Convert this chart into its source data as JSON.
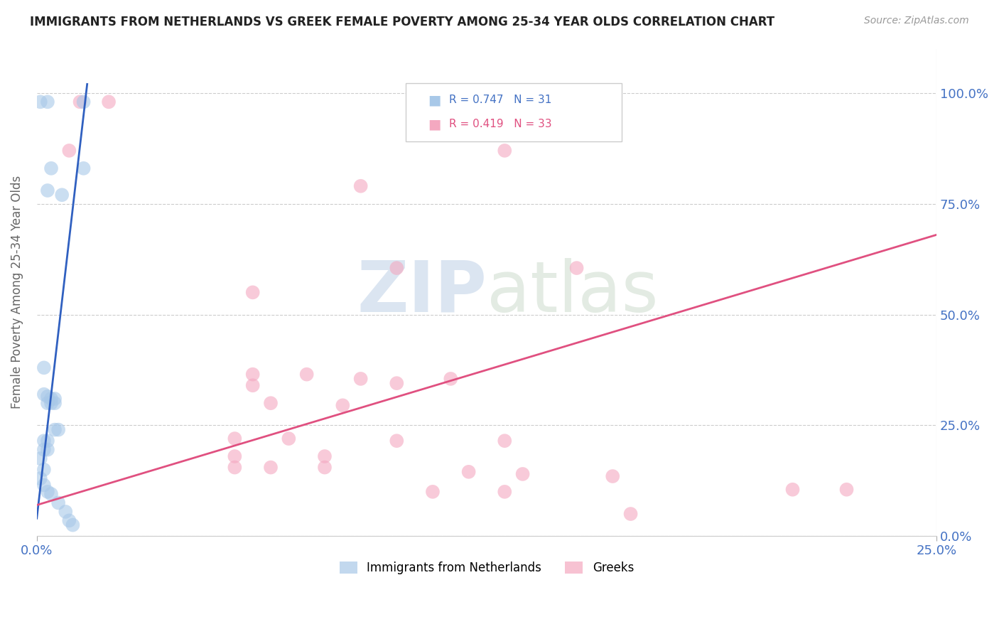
{
  "title": "IMMIGRANTS FROM NETHERLANDS VS GREEK FEMALE POVERTY AMONG 25-34 YEAR OLDS CORRELATION CHART",
  "source": "Source: ZipAtlas.com",
  "ylabel": "Female Poverty Among 25-34 Year Olds",
  "legend1_label": "Immigrants from Netherlands",
  "legend2_label": "Greeks",
  "r1": 0.747,
  "n1": 31,
  "r2": 0.419,
  "n2": 33,
  "blue_color": "#a8c8e8",
  "pink_color": "#f4a8c0",
  "blue_line_color": "#3060c0",
  "pink_line_color": "#e05080",
  "blue_dots": [
    [
      0.001,
      0.98
    ],
    [
      0.003,
      0.98
    ],
    [
      0.013,
      0.98
    ],
    [
      0.004,
      0.83
    ],
    [
      0.013,
      0.83
    ],
    [
      0.003,
      0.78
    ],
    [
      0.007,
      0.77
    ],
    [
      0.002,
      0.38
    ],
    [
      0.002,
      0.32
    ],
    [
      0.003,
      0.315
    ],
    [
      0.004,
      0.31
    ],
    [
      0.005,
      0.31
    ],
    [
      0.003,
      0.3
    ],
    [
      0.004,
      0.3
    ],
    [
      0.005,
      0.3
    ],
    [
      0.005,
      0.24
    ],
    [
      0.006,
      0.24
    ],
    [
      0.002,
      0.215
    ],
    [
      0.003,
      0.215
    ],
    [
      0.002,
      0.195
    ],
    [
      0.003,
      0.195
    ],
    [
      0.001,
      0.175
    ],
    [
      0.002,
      0.15
    ],
    [
      0.001,
      0.13
    ],
    [
      0.002,
      0.115
    ],
    [
      0.003,
      0.1
    ],
    [
      0.004,
      0.095
    ],
    [
      0.006,
      0.075
    ],
    [
      0.008,
      0.055
    ],
    [
      0.009,
      0.035
    ],
    [
      0.01,
      0.025
    ]
  ],
  "pink_dots": [
    [
      0.012,
      0.98
    ],
    [
      0.02,
      0.98
    ],
    [
      0.009,
      0.87
    ],
    [
      0.13,
      0.87
    ],
    [
      0.09,
      0.79
    ],
    [
      0.1,
      0.605
    ],
    [
      0.15,
      0.605
    ],
    [
      0.06,
      0.55
    ],
    [
      0.06,
      0.365
    ],
    [
      0.075,
      0.365
    ],
    [
      0.09,
      0.355
    ],
    [
      0.115,
      0.355
    ],
    [
      0.06,
      0.34
    ],
    [
      0.1,
      0.345
    ],
    [
      0.065,
      0.3
    ],
    [
      0.085,
      0.295
    ],
    [
      0.055,
      0.22
    ],
    [
      0.07,
      0.22
    ],
    [
      0.1,
      0.215
    ],
    [
      0.13,
      0.215
    ],
    [
      0.055,
      0.18
    ],
    [
      0.08,
      0.18
    ],
    [
      0.055,
      0.155
    ],
    [
      0.065,
      0.155
    ],
    [
      0.08,
      0.155
    ],
    [
      0.12,
      0.145
    ],
    [
      0.135,
      0.14
    ],
    [
      0.16,
      0.135
    ],
    [
      0.11,
      0.1
    ],
    [
      0.13,
      0.1
    ],
    [
      0.21,
      0.105
    ],
    [
      0.225,
      0.105
    ],
    [
      0.165,
      0.05
    ]
  ],
  "blue_line_x": [
    0.0,
    0.014
  ],
  "blue_line_y": [
    0.04,
    1.02
  ],
  "pink_line_x": [
    0.0,
    0.25
  ],
  "pink_line_y": [
    0.07,
    0.68
  ],
  "xlim": [
    0.0,
    0.25
  ],
  "ylim": [
    0.0,
    1.1
  ],
  "ytick_vals": [
    0.0,
    0.25,
    0.5,
    0.75,
    1.0
  ],
  "xtick_vals": [
    0.0,
    0.25
  ],
  "watermark_zip": "ZIP",
  "watermark_atlas": "atlas",
  "dot_size": 200
}
